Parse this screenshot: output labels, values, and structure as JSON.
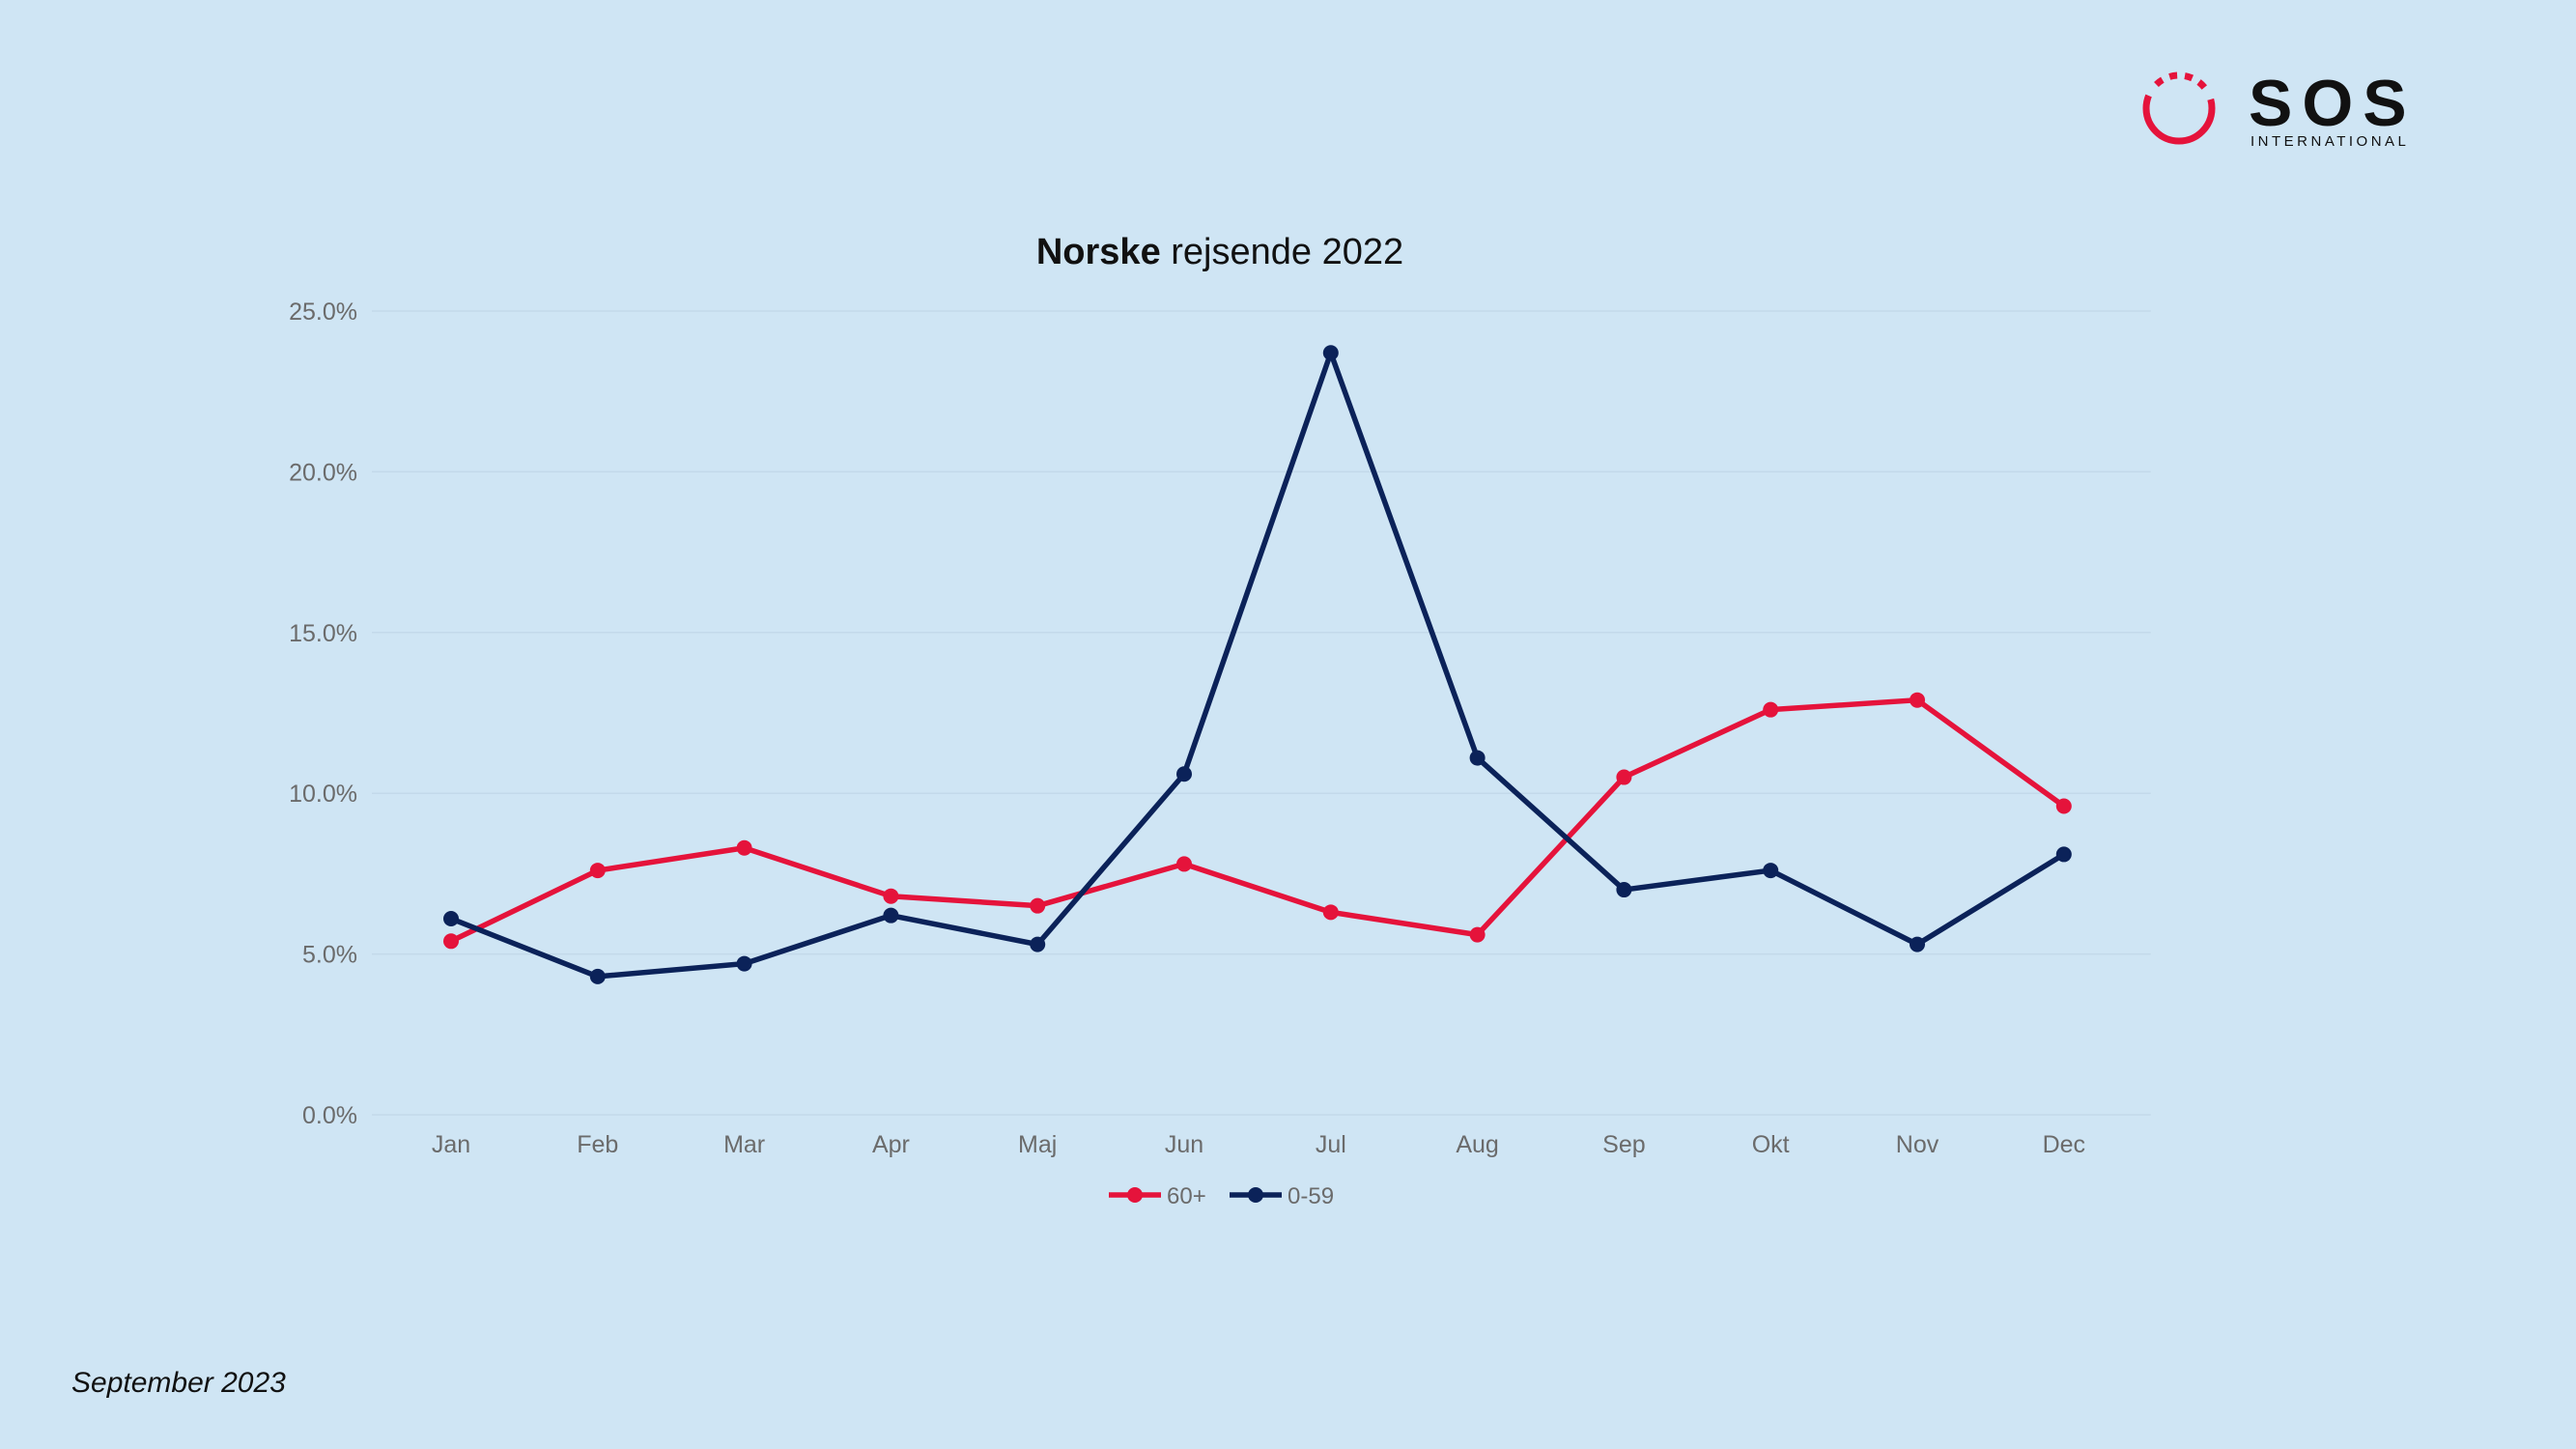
{
  "logo": {
    "wordmark": "SOS",
    "subtitle": "INTERNATIONAL"
  },
  "title": {
    "bold": "Norske",
    "rest": "rejsende 2022"
  },
  "footer": {
    "date": "September 2023"
  },
  "colors": {
    "background": "#cfe5f4",
    "series_60": "#e5133b",
    "series_059": "#0b2259",
    "axis_text": "#6b6b6b"
  },
  "chart_data": {
    "type": "line",
    "title": "Norske rejsende 2022",
    "categories": [
      "Jan",
      "Feb",
      "Mar",
      "Apr",
      "Maj",
      "Jun",
      "Jul",
      "Aug",
      "Sep",
      "Okt",
      "Nov",
      "Dec"
    ],
    "series": [
      {
        "name": "60+",
        "color": "#e5133b",
        "values": [
          5.4,
          7.6,
          8.3,
          6.8,
          6.5,
          7.8,
          6.3,
          5.6,
          10.5,
          12.6,
          12.9,
          9.6
        ]
      },
      {
        "name": "0-59",
        "color": "#0b2259",
        "values": [
          6.1,
          4.3,
          4.7,
          6.2,
          5.3,
          10.6,
          23.7,
          11.1,
          7.0,
          7.6,
          5.3,
          8.1
        ]
      }
    ],
    "yticks": [
      "0.0%",
      "5.0%",
      "10.0%",
      "15.0%",
      "20.0%",
      "25.0%"
    ],
    "ylim": [
      0,
      25
    ],
    "grid": true,
    "legend": "bottom-center",
    "xlabel": "",
    "ylabel": ""
  }
}
